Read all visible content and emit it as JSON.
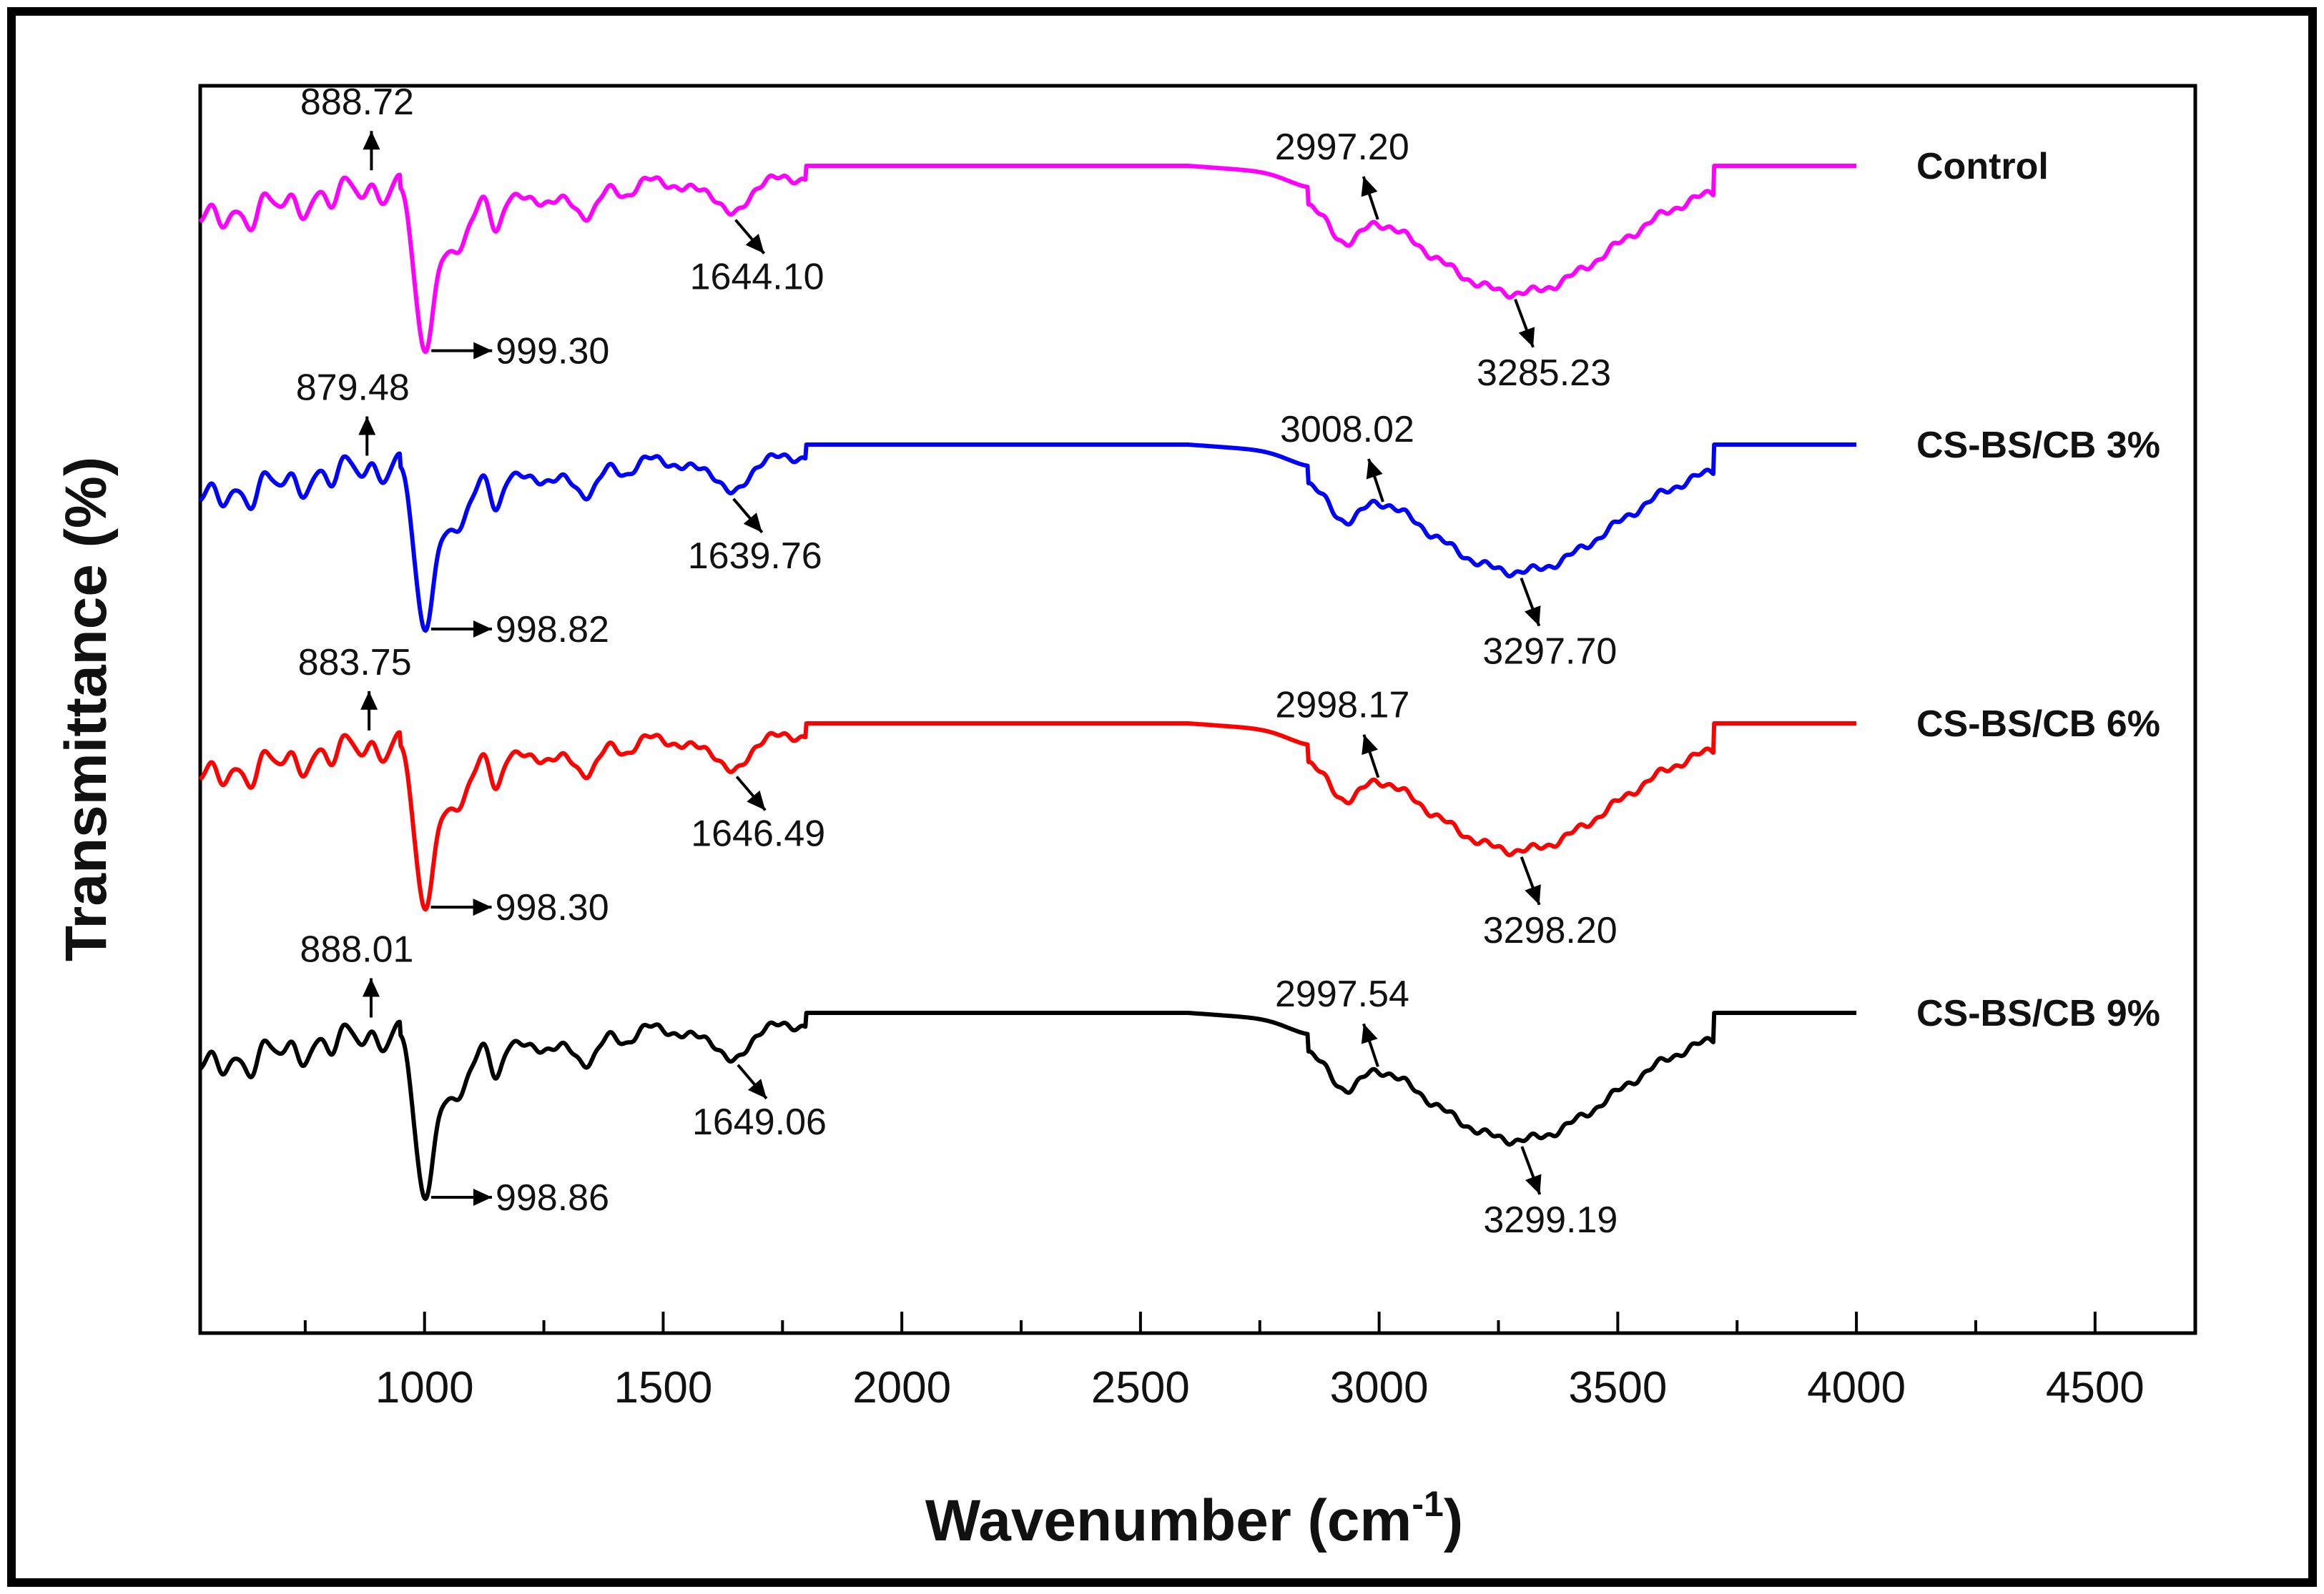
{
  "chart_data": {
    "type": "line",
    "xlabel": "Wavenumber (cm",
    "xlabel_sup": "-1",
    "xlabel_close": ")",
    "ylabel": "Transmittance (%)",
    "xlim": [
      530,
      4710
    ],
    "x_ticks": [
      1000,
      1500,
      2000,
      2500,
      3000,
      3500,
      4000,
      4500
    ],
    "x_tick_labels": [
      "1000",
      "1500",
      "2000",
      "2500",
      "3000",
      "3500",
      "4000",
      "4500"
    ],
    "y_ticks_shown": false,
    "grid": false,
    "legend": "labels at right end of each curve",
    "stacked_offset": true,
    "series": [
      {
        "name": "Control",
        "color": "#ff00ff",
        "annotations": [
          {
            "label": "888.72",
            "x": 888.72
          },
          {
            "label": "999.30",
            "x": 999.3
          },
          {
            "label": "1644.10",
            "x": 1644.1
          },
          {
            "label": "2997.20",
            "x": 2997.2
          },
          {
            "label": "3285.23",
            "x": 3285.23
          }
        ]
      },
      {
        "name": "CS-BS/CB 3%",
        "color": "#0000ff",
        "annotations": [
          {
            "label": "879.48",
            "x": 879.48
          },
          {
            "label": "998.82",
            "x": 998.82
          },
          {
            "label": "1639.76",
            "x": 1639.76
          },
          {
            "label": "3008.02",
            "x": 3008.02
          },
          {
            "label": "3297.70",
            "x": 3297.7
          }
        ]
      },
      {
        "name": "CS-BS/CB 6%",
        "color": "#ff0000",
        "annotations": [
          {
            "label": "883.75",
            "x": 883.75
          },
          {
            "label": "998.30",
            "x": 998.3
          },
          {
            "label": "1646.49",
            "x": 1646.49
          },
          {
            "label": "2998.17",
            "x": 2998.17
          },
          {
            "label": "3298.20",
            "x": 3298.2
          }
        ]
      },
      {
        "name": "CS-BS/CB 9%",
        "color": "#000000",
        "annotations": [
          {
            "label": "888.01",
            "x": 888.01
          },
          {
            "label": "998.86",
            "x": 998.86
          },
          {
            "label": "1649.06",
            "x": 1649.06
          },
          {
            "label": "2997.54",
            "x": 2997.54
          },
          {
            "label": "3299.19",
            "x": 3299.19
          }
        ]
      }
    ]
  }
}
